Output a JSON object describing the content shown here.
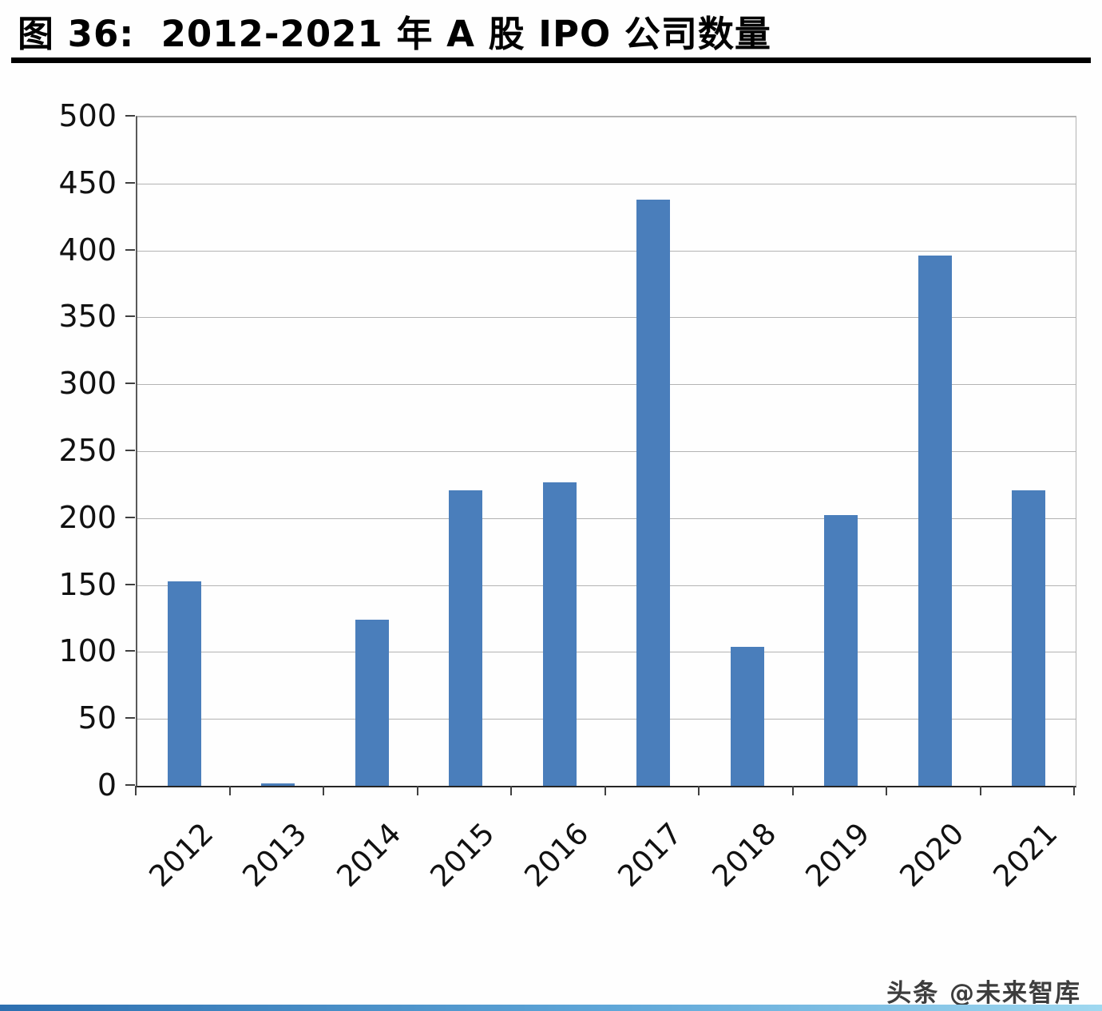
{
  "figure": {
    "title": "图 36:  2012-2021 年 A 股 IPO 公司数量",
    "watermark": "头条 @未来智库"
  },
  "chart_data": {
    "type": "bar",
    "title": "2012-2021 年 A 股 IPO 公司数量",
    "categories": [
      "2012",
      "2013",
      "2014",
      "2015",
      "2016",
      "2017",
      "2018",
      "2019",
      "2020",
      "2021"
    ],
    "values": [
      153,
      2,
      124,
      221,
      227,
      438,
      104,
      202,
      396,
      221
    ],
    "xlabel": "",
    "ylabel": "",
    "ylim": [
      0,
      500
    ],
    "ytick_step": 50,
    "bar_color": "#4a7ebb",
    "grid": true,
    "legend": false,
    "x_label_rotation": -45
  }
}
